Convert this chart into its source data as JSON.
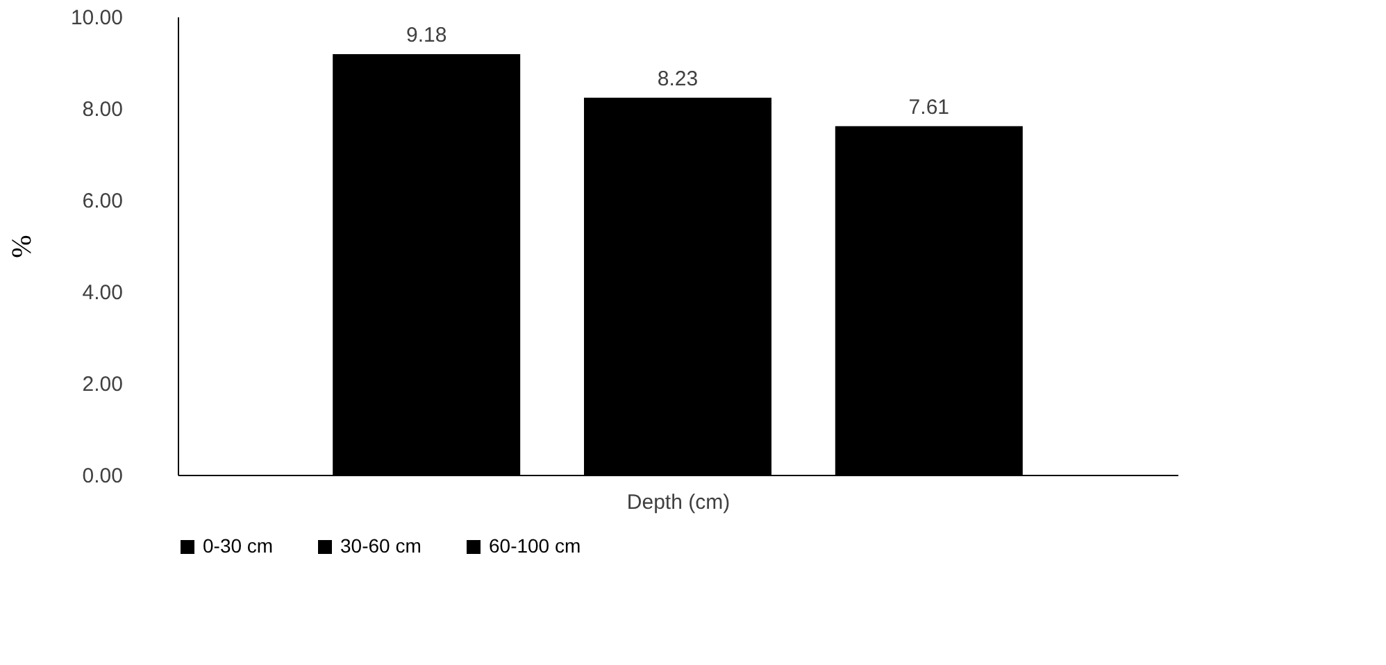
{
  "chart_data": {
    "type": "bar",
    "categories": [
      null
    ],
    "xlabel": "Depth (cm)",
    "ylabel": "%",
    "series": [
      {
        "name": "0-30 cm",
        "color": "#000000",
        "values": [
          9.18
        ]
      },
      {
        "name": "30-60 cm",
        "color": "#000000",
        "values": [
          8.23
        ]
      },
      {
        "name": "60-100 cm",
        "color": "#000000",
        "values": [
          7.61
        ]
      }
    ],
    "ylim": [
      0,
      10
    ],
    "yticks": [
      {
        "value": 0,
        "label": "0.00"
      },
      {
        "value": 2,
        "label": "2.00"
      },
      {
        "value": 4,
        "label": "4.00"
      },
      {
        "value": 6,
        "label": "6.00"
      },
      {
        "value": 8,
        "label": "8.00"
      },
      {
        "value": 10,
        "label": "10.00"
      }
    ],
    "data_labels": true,
    "grid": false,
    "legend": "bottom"
  }
}
